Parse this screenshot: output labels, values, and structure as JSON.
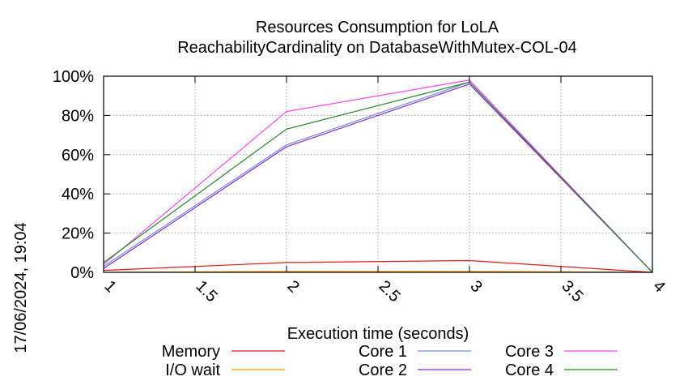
{
  "chart_data": {
    "type": "line",
    "title_line1": "Resources Consumption for LoLA",
    "title_line2": "ReachabilityCardinality on DatabaseWithMutex-COL-04",
    "xlabel": "Execution time (seconds)",
    "ylabel": "",
    "timestamp": "17/06/2024, 19:04",
    "xlim": [
      1,
      4
    ],
    "ylim": [
      0,
      100
    ],
    "grid": true,
    "x_ticks": [
      {
        "value": 1,
        "label": "1"
      },
      {
        "value": 1.5,
        "label": "1.5"
      },
      {
        "value": 2,
        "label": "2"
      },
      {
        "value": 2.5,
        "label": "2.5"
      },
      {
        "value": 3,
        "label": "3"
      },
      {
        "value": 3.5,
        "label": "3.5"
      },
      {
        "value": 4,
        "label": "4"
      }
    ],
    "y_ticks": [
      {
        "value": 0,
        "label": "0%"
      },
      {
        "value": 20,
        "label": "20%"
      },
      {
        "value": 40,
        "label": "40%"
      },
      {
        "value": 60,
        "label": "60%"
      },
      {
        "value": 80,
        "label": "80%"
      },
      {
        "value": 100,
        "label": "100%"
      }
    ],
    "legend_position": "bottom",
    "series": [
      {
        "name": "Memory",
        "color": "#e41a1c",
        "x": [
          1,
          2,
          3,
          4
        ],
        "values": [
          1,
          5,
          6,
          0
        ]
      },
      {
        "name": "I/O wait",
        "color": "#ff9900",
        "x": [
          1,
          2,
          3,
          4
        ],
        "values": [
          0,
          0.5,
          0.5,
          0
        ]
      },
      {
        "name": "Core 1",
        "color": "#6f8fe0",
        "x": [
          1,
          2,
          3,
          4
        ],
        "values": [
          3,
          65,
          97,
          0
        ]
      },
      {
        "name": "Core 2",
        "color": "#8a2be2",
        "x": [
          1,
          2,
          3,
          4
        ],
        "values": [
          2,
          64,
          96,
          0
        ]
      },
      {
        "name": "Core 3",
        "color": "#ff44ff",
        "x": [
          1,
          2,
          3,
          4
        ],
        "values": [
          4,
          82,
          98,
          0
        ]
      },
      {
        "name": "Core 4",
        "color": "#228b22",
        "x": [
          1,
          2,
          3,
          4
        ],
        "values": [
          5,
          73,
          97,
          0
        ]
      }
    ]
  }
}
